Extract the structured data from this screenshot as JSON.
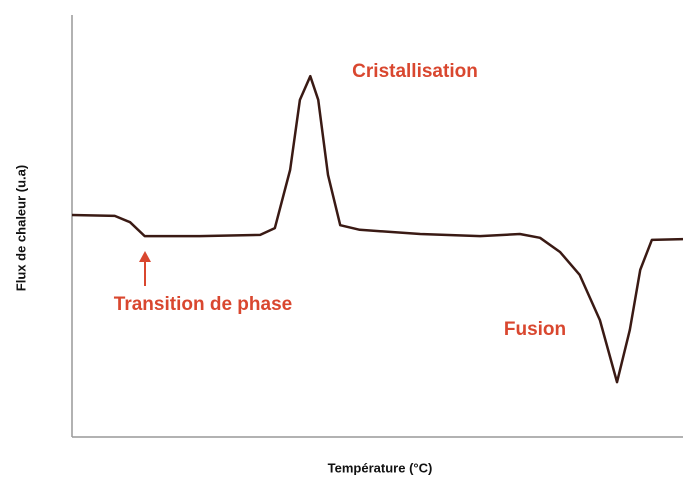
{
  "chart_data": {
    "type": "line",
    "x_label": "Température (°C)",
    "y_label": "Flux de chaleur (u.a)",
    "annotations": [
      "Cristallisation",
      "Transition de phase",
      "Fusion"
    ],
    "xlim": [
      0,
      100
    ],
    "ylim": [
      0,
      100
    ],
    "x": [
      0,
      7.0,
      9.5,
      11.9,
      14.4,
      20.9,
      30.8,
      33.2,
      35.7,
      37.3,
      39.0,
      40.3,
      41.9,
      43.9,
      47.1,
      57.0,
      66.8,
      73.3,
      76.6,
      79.9,
      83.1,
      86.4,
      89.2,
      91.3,
      93.0,
      94.9,
      100
    ],
    "series": [
      {
        "color": "#3a1a14",
        "values": [
          52.6,
          52.4,
          50.9,
          47.6,
          47.6,
          47.6,
          47.9,
          49.5,
          63.3,
          79.9,
          85.5,
          79.9,
          62.1,
          50.2,
          49.1,
          48.1,
          47.6,
          48.1,
          47.2,
          43.8,
          38.4,
          27.7,
          13.0,
          25.4,
          39.6,
          46.7,
          46.9
        ]
      }
    ]
  }
}
